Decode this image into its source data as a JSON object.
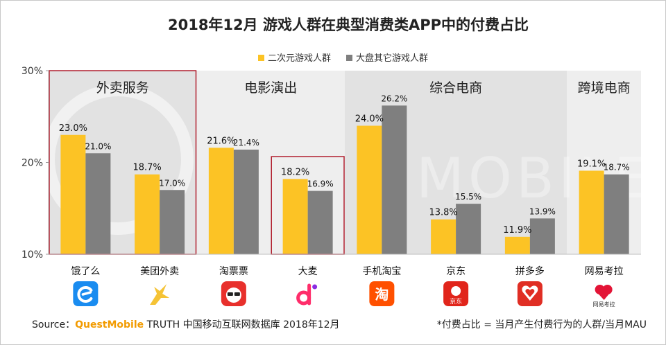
{
  "chart_data": {
    "type": "bar",
    "title": "2018年12月 游戏人群在典型消费类APP中的付费占比",
    "series": [
      {
        "name": "二次元游戏人群",
        "color": "#fcc325",
        "values": [
          23.0,
          18.7,
          21.6,
          18.2,
          24.0,
          13.8,
          11.9,
          19.1
        ]
      },
      {
        "name": "大盘其它游戏人群",
        "color": "#7f7f7f",
        "values": [
          21.0,
          17.0,
          21.4,
          16.9,
          26.2,
          15.5,
          13.9,
          18.7
        ]
      }
    ],
    "categories": [
      "饿了么",
      "美团外卖",
      "淘票票",
      "大麦",
      "手机淘宝",
      "京东",
      "拼多多",
      "网易考拉"
    ],
    "groups": [
      {
        "label": "外卖服务",
        "start": 0,
        "end": 1,
        "shade": "#e2e2e2"
      },
      {
        "label": "电影演出",
        "start": 2,
        "end": 3,
        "shade": "#eeeeee"
      },
      {
        "label": "综合电商",
        "start": 4,
        "end": 6,
        "shade": "#e2e2e2"
      },
      {
        "label": "跨境电商",
        "start": 7,
        "end": 7,
        "shade": "#eeeeee"
      }
    ],
    "highlighted": [
      {
        "start": 0,
        "end": 1
      },
      {
        "start": 3,
        "end": 3
      }
    ],
    "ylim": [
      10,
      30
    ],
    "yticks": [
      10,
      20,
      30
    ],
    "ytick_labels": [
      "10%",
      "20%",
      "30%"
    ],
    "value_format": "{v}%",
    "legend_position": "top-center"
  },
  "icons": [
    {
      "name": "eleme-app-icon",
      "color": "#1a8cf0"
    },
    {
      "name": "meituan-waimai-app-icon",
      "color": "#f5c335"
    },
    {
      "name": "taopiaopiao-app-icon",
      "color": "#e8302c"
    },
    {
      "name": "damai-app-icon",
      "color": "#ff2d6a"
    },
    {
      "name": "taobao-app-icon",
      "color": "#ff5000",
      "glyph": "淘"
    },
    {
      "name": "jd-app-icon",
      "color": "#e1251b",
      "glyph": "京东"
    },
    {
      "name": "pinduoduo-app-icon",
      "color": "#e02e24"
    },
    {
      "name": "kaola-app-icon",
      "color": "#e31436",
      "glyph": "网易考拉"
    }
  ],
  "footer": {
    "source_label": "Source：",
    "source_brand": "QuestMobile",
    "source_rest": " TRUTH 中国移动互联网数据库 2018年12月",
    "note": "*付费占比 = 当月产生付费行为的人群/当月MAU"
  }
}
